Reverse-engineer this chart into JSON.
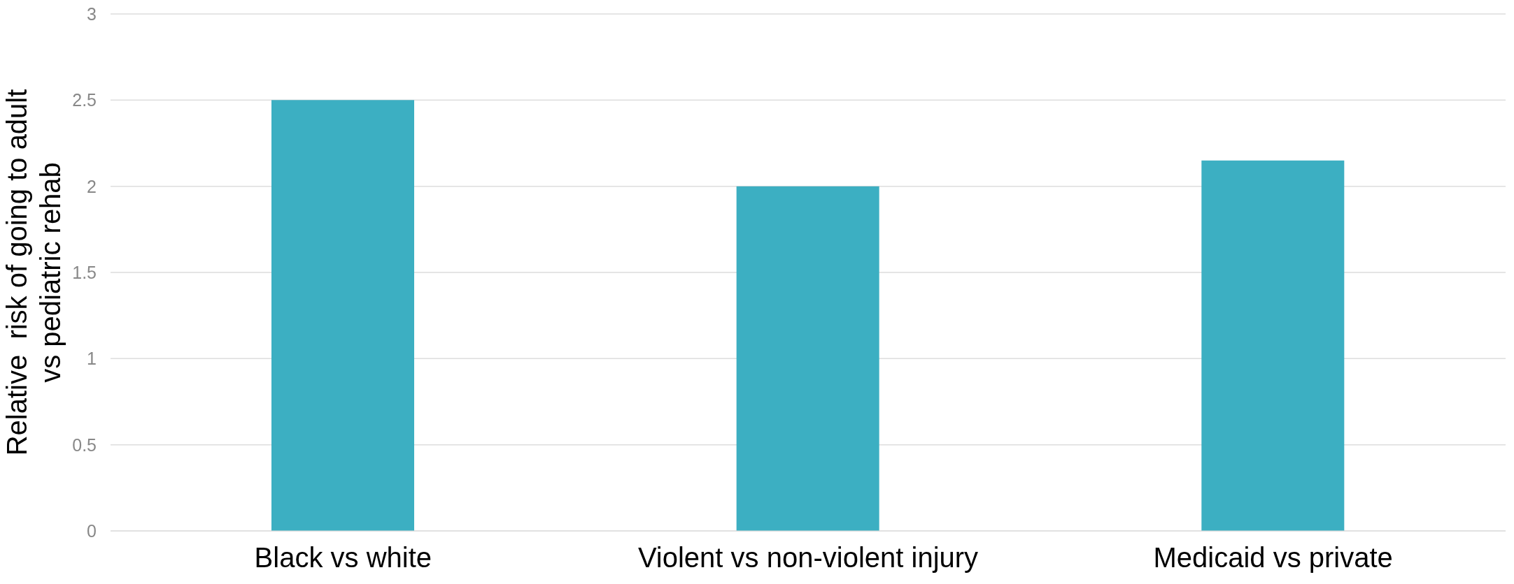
{
  "chart_data": {
    "type": "bar",
    "ylabel": "Relative  risk of going to adult\nvs pediatric rehab",
    "categories": [
      "Black vs white",
      "Violent vs non-violent injury",
      "Medicaid vs private"
    ],
    "values": [
      2.5,
      2,
      2.15
    ],
    "color": "#3cafc2",
    "ylim": [
      0,
      3
    ],
    "yticks": [
      0,
      0.5,
      1,
      1.5,
      2,
      2.5,
      3
    ],
    "grid": "y"
  }
}
